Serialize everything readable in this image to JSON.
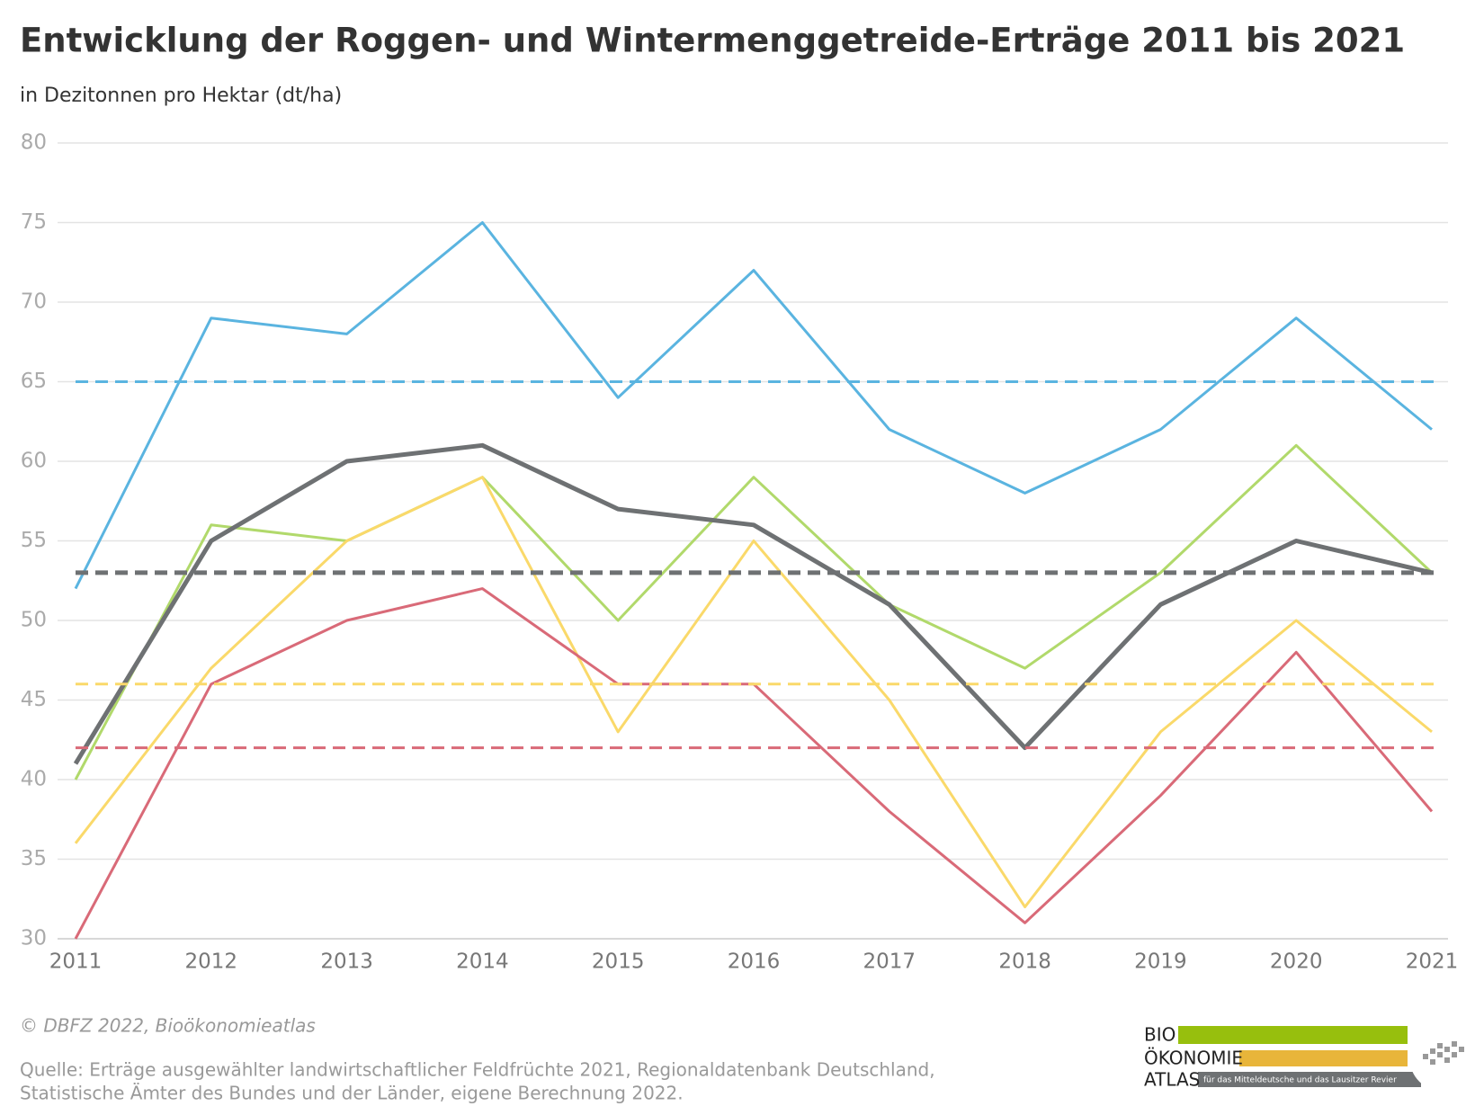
{
  "chart_data": {
    "type": "line",
    "title": "Entwicklung der Roggen- und Wintermenggetreide-Erträge 2011 bis 2021",
    "subtitle": "in Dezitonnen pro Hektar (dt/ha)",
    "categories": [
      "2011",
      "2012",
      "2013",
      "2014",
      "2015",
      "2016",
      "2017",
      "2018",
      "2019",
      "2020",
      "2021"
    ],
    "series": [
      {
        "color": "#5ab4e0",
        "width": 3,
        "values": [
          52,
          69,
          68,
          75,
          64,
          72,
          62,
          58,
          62,
          69,
          62
        ]
      },
      {
        "color": "#b1d96b",
        "width": 3,
        "values": [
          40,
          56,
          55,
          59,
          50,
          59,
          51,
          47,
          53,
          61,
          53
        ]
      },
      {
        "color": "#fad96a",
        "width": 3,
        "values": [
          36,
          47,
          55,
          59,
          43,
          55,
          45,
          32,
          43,
          50,
          43
        ]
      },
      {
        "color": "#d96a78",
        "width": 3,
        "values": [
          30,
          46,
          50,
          52,
          46,
          46,
          38,
          31,
          39,
          48,
          38
        ]
      },
      {
        "color": "#6e7173",
        "width": 5,
        "values": [
          41,
          55,
          60,
          61,
          57,
          56,
          51,
          42,
          51,
          55,
          53
        ]
      }
    ],
    "hlines": [
      {
        "value": 65,
        "color": "#5ab4e0",
        "width": 3
      },
      {
        "value": 53,
        "color": "#b1d96b",
        "width": 3
      },
      {
        "value": 46,
        "color": "#fad96a",
        "width": 3
      },
      {
        "value": 42,
        "color": "#d96a78",
        "width": 3
      },
      {
        "value": 53,
        "color": "#6e7173",
        "width": 5
      }
    ],
    "ylim": [
      30,
      80
    ],
    "yticks": [
      30,
      35,
      40,
      45,
      50,
      55,
      60,
      65,
      70,
      75,
      80
    ],
    "grid": true
  },
  "footer": {
    "copyright": "© DBFZ 2022, Bioökonomieatlas",
    "source": [
      "Quelle: Erträge ausgewählter landwirtschaftlicher Feldfrüchte 2021, Regionaldatenbank Deutschland,",
      "Statistische Ämter des Bundes und der Länder, eigene Berechnung 2022."
    ]
  },
  "logo": {
    "line1": "BIO",
    "line2": "ÖKONOMIE",
    "line3": "ATLAS",
    "tagline": "für das Mitteldeutsche und das Lausitzer Revier"
  }
}
